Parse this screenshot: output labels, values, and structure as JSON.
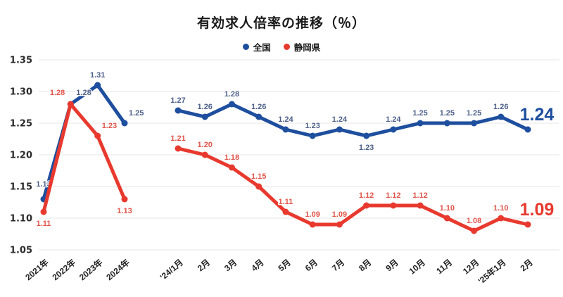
{
  "header": {
    "title": "有効求人倍率の推移（％）"
  },
  "legend": {
    "items": [
      {
        "label": "全国",
        "color": "#1e4e9e"
      },
      {
        "label": "静岡県",
        "color": "#e8392e"
      }
    ]
  },
  "chart_data": {
    "type": "line",
    "title": "有効求人倍率の推移（％）",
    "ylim": [
      1.05,
      1.35
    ],
    "yticks": [
      1.35,
      1.3,
      1.25,
      1.2,
      1.15,
      1.1,
      1.05
    ],
    "ytick_labels": [
      "1.35",
      "1.30",
      "1.25",
      "1.20",
      "1.15",
      "1.10",
      "1.05"
    ],
    "grid": true,
    "grid_color": "#e4e4e4",
    "axis_color": "#2b2b2b",
    "legend_position": "top",
    "groups": [
      {
        "name": "yearly",
        "categories": [
          "2021年",
          "2022年",
          "2023年",
          "2024年"
        ],
        "series": [
          {
            "name": "全国",
            "color": "#1e4e9e",
            "label_color": "#4f618a",
            "values": [
              1.13,
              1.28,
              1.31,
              1.25
            ],
            "label_pos": [
              "above-far",
              "right",
              "above",
              "above-right"
            ]
          },
          {
            "name": "静岡県",
            "color": "#e8392e",
            "label_color": "#e0554b",
            "values": [
              1.11,
              1.28,
              1.23,
              1.13
            ],
            "label_pos": [
              "below",
              "left",
              "above-right",
              "below"
            ]
          }
        ]
      },
      {
        "name": "monthly",
        "categories": [
          "'24/1月",
          "2月",
          "3月",
          "4月",
          "5月",
          "6月",
          "7月",
          "8月",
          "9月",
          "10月",
          "11月",
          "12月",
          "'25年1月",
          "2月"
        ],
        "series": [
          {
            "name": "全国",
            "color": "#1e4e9e",
            "label_color": "#4f618a",
            "values": [
              1.27,
              1.26,
              1.28,
              1.26,
              1.24,
              1.23,
              1.24,
              1.23,
              1.24,
              1.25,
              1.25,
              1.25,
              1.26,
              1.24
            ],
            "label_pos": [
              "above",
              "above",
              "above",
              "above",
              "above",
              "above",
              "above",
              "below",
              "above",
              "above",
              "above",
              "above",
              "above",
              "end"
            ],
            "end_label": "1.24"
          },
          {
            "name": "静岡県",
            "color": "#e8392e",
            "label_color": "#e0554b",
            "values": [
              1.21,
              1.2,
              1.18,
              1.15,
              1.11,
              1.09,
              1.09,
              1.12,
              1.12,
              1.12,
              1.1,
              1.08,
              1.1,
              1.09
            ],
            "label_pos": [
              "above",
              "above",
              "above",
              "above",
              "above",
              "above",
              "above",
              "above",
              "above",
              "above",
              "above",
              "above",
              "above",
              "end"
            ],
            "end_label": "1.09"
          }
        ]
      }
    ]
  }
}
